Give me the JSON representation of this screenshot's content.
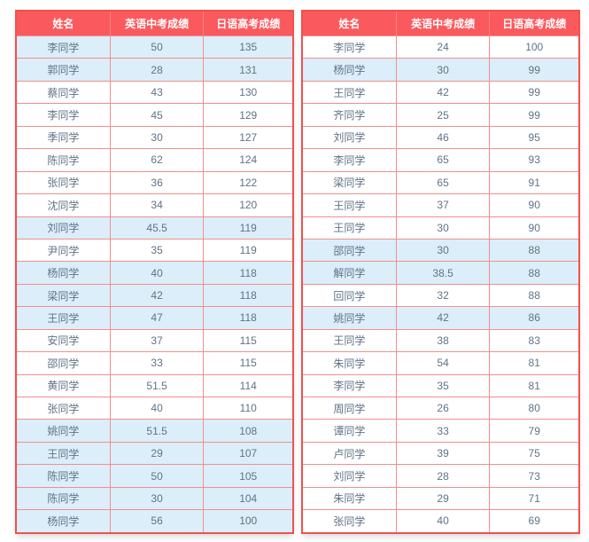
{
  "colors": {
    "header_bg": "#fa5a5e",
    "header_text": "#ffffff",
    "outer_border": "#f0504f",
    "inner_border": "#f18f8d",
    "highlight_row_bg": "#dceef9",
    "default_row_bg": "#ffffff",
    "cell_text": "#5f7386"
  },
  "chart_data": [
    {
      "type": "table",
      "name": "left-score-table",
      "columns": [
        "姓名",
        "英语中考成绩",
        "日语高考成绩"
      ],
      "rows": [
        [
          "李同学",
          "50",
          "135"
        ],
        [
          "郭同学",
          "28",
          "131"
        ],
        [
          "蔡同学",
          "43",
          "130"
        ],
        [
          "李同学",
          "45",
          "129"
        ],
        [
          "季同学",
          "30",
          "127"
        ],
        [
          "陈同学",
          "62",
          "124"
        ],
        [
          "张同学",
          "36",
          "122"
        ],
        [
          "沈同学",
          "34",
          "120"
        ],
        [
          "刘同学",
          "45.5",
          "119"
        ],
        [
          "尹同学",
          "35",
          "119"
        ],
        [
          "杨同学",
          "40",
          "118"
        ],
        [
          "梁同学",
          "42",
          "118"
        ],
        [
          "王同学",
          "47",
          "118"
        ],
        [
          "安同学",
          "37",
          "115"
        ],
        [
          "邵同学",
          "33",
          "115"
        ],
        [
          "黄同学",
          "51.5",
          "114"
        ],
        [
          "张同学",
          "40",
          "110"
        ],
        [
          "姚同学",
          "51.5",
          "108"
        ],
        [
          "王同学",
          "29",
          "107"
        ],
        [
          "陈同学",
          "50",
          "105"
        ],
        [
          "陈同学",
          "30",
          "104"
        ],
        [
          "杨同学",
          "56",
          "100"
        ]
      ],
      "highlighted_rows": [
        0,
        1,
        8,
        10,
        11,
        12,
        17,
        18,
        19,
        20,
        21
      ]
    },
    {
      "type": "table",
      "name": "right-score-table",
      "columns": [
        "姓名",
        "英语中考成绩",
        "日语高考成绩"
      ],
      "rows": [
        [
          "李同学",
          "24",
          "100"
        ],
        [
          "杨同学",
          "30",
          "99"
        ],
        [
          "王同学",
          "42",
          "99"
        ],
        [
          "齐同学",
          "25",
          "99"
        ],
        [
          "刘同学",
          "46",
          "95"
        ],
        [
          "李同学",
          "65",
          "93"
        ],
        [
          "梁同学",
          "65",
          "91"
        ],
        [
          "王同学",
          "37",
          "90"
        ],
        [
          "王同学",
          "30",
          "90"
        ],
        [
          "邵同学",
          "30",
          "88"
        ],
        [
          "解同学",
          "38.5",
          "88"
        ],
        [
          "回同学",
          "32",
          "88"
        ],
        [
          "姚同学",
          "42",
          "86"
        ],
        [
          "王同学",
          "38",
          "83"
        ],
        [
          "朱同学",
          "54",
          "81"
        ],
        [
          "李同学",
          "35",
          "81"
        ],
        [
          "周同学",
          "26",
          "80"
        ],
        [
          "谭同学",
          "33",
          "79"
        ],
        [
          "卢同学",
          "39",
          "75"
        ],
        [
          "刘同学",
          "28",
          "73"
        ],
        [
          "朱同学",
          "29",
          "71"
        ],
        [
          "张同学",
          "40",
          "69"
        ]
      ],
      "highlighted_rows": [
        1,
        9,
        10,
        12
      ]
    }
  ]
}
